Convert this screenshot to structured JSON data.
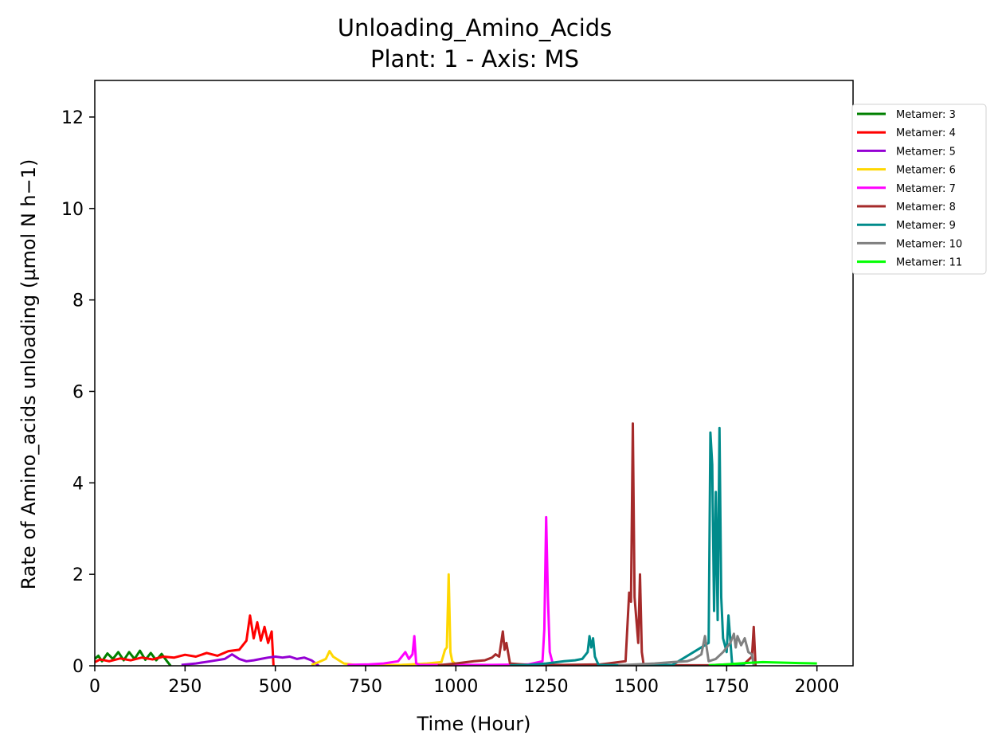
{
  "chart_data": {
    "type": "line",
    "title": "Unloading_Amino_Acids",
    "subtitle": "Plant: 1 - Axis: MS",
    "xlabel": "Time (Hour)",
    "ylabel": "Rate of Amino_acids unloading (µmol N h−1)",
    "xlim": [
      0,
      2100
    ],
    "ylim": [
      0,
      12.8
    ],
    "xticks": [
      0,
      250,
      500,
      750,
      1000,
      1250,
      1500,
      1750,
      2000
    ],
    "yticks": [
      0,
      2,
      4,
      6,
      8,
      10,
      12
    ],
    "grid": false,
    "legend_position": "outside-top-right",
    "series": [
      {
        "name": "Metamer: 3",
        "color": "#008000",
        "x": [
          0,
          10,
          20,
          35,
          50,
          65,
          80,
          95,
          110,
          125,
          140,
          155,
          170,
          185,
          200,
          210
        ],
        "y": [
          0.15,
          0.22,
          0.1,
          0.27,
          0.15,
          0.3,
          0.12,
          0.3,
          0.15,
          0.33,
          0.13,
          0.28,
          0.12,
          0.26,
          0.1,
          0.0
        ]
      },
      {
        "name": "Metamer: 4",
        "color": "#ff0000",
        "x": [
          0,
          15,
          40,
          70,
          100,
          130,
          160,
          190,
          220,
          250,
          280,
          310,
          340,
          370,
          400,
          420,
          430,
          440,
          450,
          460,
          470,
          480,
          490,
          495
        ],
        "y": [
          0.08,
          0.14,
          0.1,
          0.16,
          0.12,
          0.18,
          0.14,
          0.2,
          0.18,
          0.24,
          0.2,
          0.28,
          0.22,
          0.32,
          0.35,
          0.55,
          1.1,
          0.6,
          0.95,
          0.55,
          0.85,
          0.5,
          0.75,
          0.0
        ]
      },
      {
        "name": "Metamer: 5",
        "color": "#9400d3",
        "x": [
          240,
          280,
          320,
          360,
          380,
          400,
          420,
          440,
          460,
          480,
          500,
          520,
          540,
          560,
          580,
          600,
          620
        ],
        "y": [
          0.02,
          0.05,
          0.1,
          0.15,
          0.25,
          0.15,
          0.1,
          0.12,
          0.15,
          0.18,
          0.2,
          0.18,
          0.2,
          0.15,
          0.18,
          0.12,
          0.0
        ]
      },
      {
        "name": "Metamer: 6",
        "color": "#ffd700",
        "x": [
          600,
          620,
          640,
          650,
          660,
          670,
          690,
          720,
          780,
          850,
          920,
          960,
          970,
          975,
          980,
          985,
          990,
          1000,
          1020
        ],
        "y": [
          0.02,
          0.08,
          0.15,
          0.32,
          0.2,
          0.15,
          0.05,
          0.02,
          0.01,
          0.02,
          0.05,
          0.08,
          0.35,
          0.4,
          2.0,
          0.3,
          0.1,
          0.03,
          0.0
        ]
      },
      {
        "name": "Metamer: 7",
        "color": "#ff00ff",
        "x": [
          700,
          760,
          800,
          840,
          860,
          870,
          880,
          885,
          890,
          900,
          1000,
          1100,
          1200,
          1240,
          1245,
          1250,
          1255,
          1260,
          1270
        ],
        "y": [
          0.02,
          0.03,
          0.05,
          0.1,
          0.3,
          0.15,
          0.25,
          0.65,
          0.05,
          0.02,
          0.02,
          0.02,
          0.03,
          0.1,
          0.8,
          3.25,
          1.5,
          0.3,
          0.0
        ]
      },
      {
        "name": "Metamer: 8",
        "color": "#a52a2a",
        "x": [
          950,
          1000,
          1050,
          1080,
          1100,
          1110,
          1120,
          1130,
          1135,
          1140,
          1150,
          1200,
          1300,
          1400,
          1470,
          1480,
          1485,
          1490,
          1495,
          1500,
          1505,
          1510,
          1515,
          1520,
          1600,
          1700,
          1800,
          1820,
          1825,
          1830
        ],
        "y": [
          0.01,
          0.05,
          0.1,
          0.12,
          0.18,
          0.25,
          0.2,
          0.75,
          0.35,
          0.5,
          0.05,
          0.02,
          0.02,
          0.03,
          0.1,
          1.6,
          1.4,
          5.3,
          1.5,
          1.0,
          0.5,
          2.0,
          0.3,
          0.02,
          0.01,
          0.01,
          0.05,
          0.2,
          0.85,
          0.0
        ]
      },
      {
        "name": "Metamer: 9",
        "color": "#008b8b",
        "x": [
          1150,
          1200,
          1250,
          1300,
          1330,
          1350,
          1365,
          1370,
          1375,
          1380,
          1385,
          1395,
          1500,
          1600,
          1700,
          1705,
          1710,
          1715,
          1720,
          1725,
          1730,
          1735,
          1740,
          1750,
          1755,
          1765,
          1800
        ],
        "y": [
          0.01,
          0.02,
          0.05,
          0.1,
          0.12,
          0.15,
          0.3,
          0.65,
          0.4,
          0.6,
          0.2,
          0.02,
          0.01,
          0.02,
          0.5,
          5.1,
          4.4,
          1.2,
          3.8,
          1.0,
          5.2,
          1.5,
          0.6,
          0.3,
          1.1,
          0.05,
          0.0
        ]
      },
      {
        "name": "Metamer: 10",
        "color": "#808080",
        "x": [
          1450,
          1500,
          1550,
          1600,
          1640,
          1660,
          1680,
          1690,
          1700,
          1720,
          1740,
          1760,
          1770,
          1775,
          1780,
          1790,
          1800,
          1810,
          1820,
          1825
        ],
        "y": [
          0.01,
          0.03,
          0.05,
          0.08,
          0.1,
          0.15,
          0.25,
          0.65,
          0.1,
          0.15,
          0.3,
          0.5,
          0.7,
          0.4,
          0.65,
          0.45,
          0.6,
          0.3,
          0.25,
          0.0
        ]
      },
      {
        "name": "Metamer: 11",
        "color": "#00ff00",
        "x": [
          1700,
          1750,
          1800,
          1850,
          1900,
          1950,
          2000
        ],
        "y": [
          0.01,
          0.03,
          0.06,
          0.08,
          0.07,
          0.06,
          0.05
        ]
      }
    ]
  }
}
